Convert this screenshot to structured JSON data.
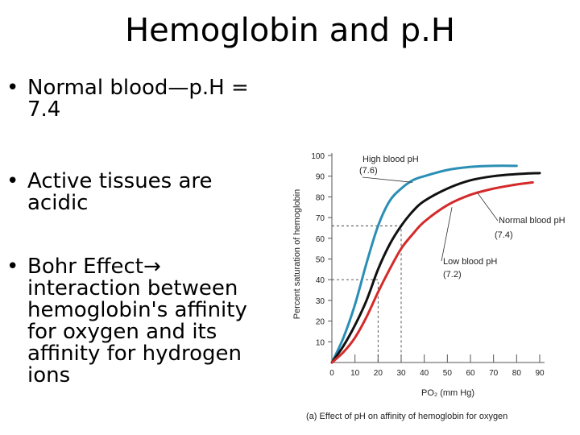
{
  "title": "Hemoglobin and p.H",
  "bullets": [
    {
      "marker": "•",
      "text": "Normal blood—p.H = 7.4"
    },
    {
      "marker": "•",
      "text": "Active tissues are acidic"
    },
    {
      "marker": "•",
      "lead": "Bohr Effect",
      "arrow": "→",
      "text": "interaction between hemoglobin's affinity for oxygen and its affinity for hydrogen ions"
    }
  ],
  "chart_data": {
    "type": "line",
    "ylabel": "Percent saturation of hemoglobin",
    "xlabel": "PO₂ (mm Hg)",
    "caption": "(a) Effect of pH on affinity of hemoglobin for oxygen",
    "x_ticks": [
      "0",
      "10",
      "20",
      "30",
      "40",
      "50",
      "60",
      "70",
      "80",
      "90"
    ],
    "y_ticks": [
      "10",
      "20",
      "30",
      "40",
      "50",
      "60",
      "70",
      "80",
      "90",
      "100"
    ],
    "xlim": [
      0,
      90
    ],
    "ylim": [
      0,
      100
    ],
    "series": [
      {
        "name": "High blood pH (7.6)",
        "color": "#2a8fb5",
        "x": [
          0,
          5,
          10,
          15,
          20,
          25,
          30,
          35,
          40,
          50,
          60,
          70,
          80
        ],
        "y": [
          0,
          12,
          28,
          48,
          66,
          78,
          84,
          88,
          90,
          93,
          94.5,
          95,
          95
        ]
      },
      {
        "name": "Normal blood pH (7.4)",
        "color": "#111111",
        "x": [
          0,
          5,
          10,
          15,
          20,
          25,
          30,
          35,
          40,
          50,
          60,
          70,
          80,
          90
        ],
        "y": [
          0,
          8,
          18,
          30,
          45,
          57,
          66,
          73,
          78,
          84,
          88,
          90,
          91,
          91.5
        ]
      },
      {
        "name": "Low blood pH (7.2)",
        "color": "#d42a2a",
        "x": [
          0,
          5,
          10,
          15,
          20,
          25,
          30,
          35,
          40,
          50,
          60,
          70,
          80,
          87
        ],
        "y": [
          0,
          5,
          12,
          22,
          34,
          45,
          55,
          62,
          68,
          76,
          81,
          84,
          86,
          87
        ]
      }
    ],
    "annotations": [
      {
        "series": "High blood pH (7.6)",
        "line1": "High blood pH",
        "line2": "(7.6)"
      },
      {
        "series": "Normal blood pH (7.4)",
        "line1": "Normal blood pH",
        "line2": "(7.4)"
      },
      {
        "series": "Low blood pH (7.2)",
        "line1": "Low blood pH",
        "line2": "(7.2)"
      }
    ],
    "reference_lines": [
      {
        "x": 30,
        "y": 66
      },
      {
        "x": 20,
        "y": 40
      }
    ]
  }
}
